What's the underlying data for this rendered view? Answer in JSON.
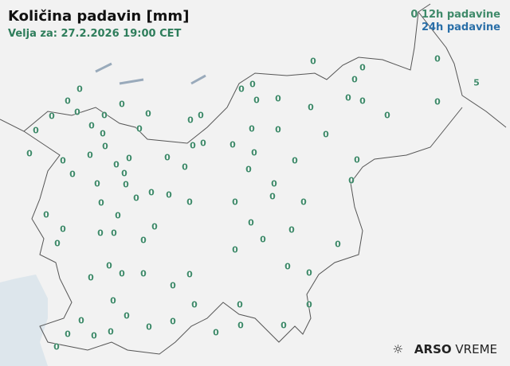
{
  "header": {
    "title": "Količina padavin [mm]",
    "valid": "Velja za: 27.2.2026 19:00 CET"
  },
  "legend": {
    "marker": "0",
    "h12": "12h padavine",
    "h24": "24h padavine"
  },
  "colors": {
    "h12": "#3f8a6a",
    "h24": "#2a6fa8",
    "sea": "#dde6ec",
    "border": "#555555"
  },
  "stations": [
    "0",
    "0",
    "0",
    "0",
    "5",
    "0",
    "0",
    "0",
    "0",
    "0",
    "0",
    "0",
    "0",
    "0",
    "0",
    "0",
    "0",
    "0",
    "0",
    "0",
    "0",
    "0",
    "0",
    "0",
    "0",
    "0",
    "0",
    "0",
    "0",
    "0",
    "0",
    "0",
    "0",
    "0",
    "0",
    "0",
    "0",
    "0",
    "0",
    "0",
    "0",
    "0",
    "0",
    "0",
    "0",
    "0",
    "0",
    "0",
    "0",
    "0",
    "0",
    "0",
    "0",
    "0",
    "0",
    "0",
    "0",
    "0",
    "0",
    "0",
    "0",
    "0",
    "0",
    "0",
    "0",
    "0",
    "0",
    "0",
    "0",
    "0",
    "0",
    "0",
    "0",
    "0",
    "0",
    "0",
    "0",
    "0",
    "0",
    "0",
    "0",
    "0",
    "0",
    "0",
    "0",
    "0",
    "0",
    "0",
    "0",
    "0",
    "0",
    "0",
    "0",
    "0",
    "0",
    "0",
    "0",
    "0",
    "0",
    "0"
  ],
  "logo": {
    "brand": "ARSO",
    "product": "VREME",
    "icon": "sun-rays-icon"
  }
}
